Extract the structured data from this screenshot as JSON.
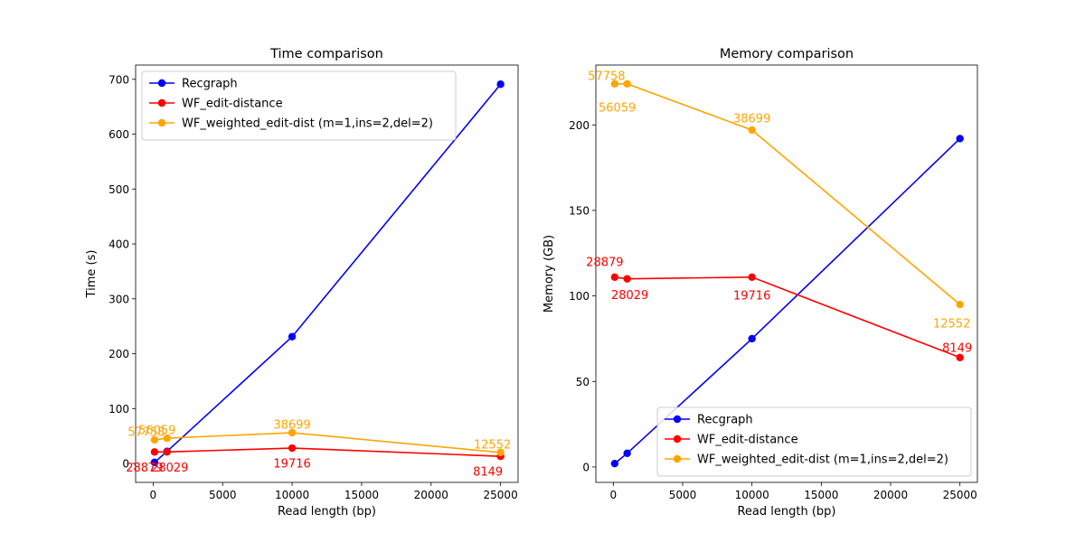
{
  "chart_data": [
    {
      "type": "line",
      "title": "Time comparison",
      "xlabel": "Read length (bp)",
      "ylabel": "Time (s)",
      "xlim": [
        -1260,
        26260
      ],
      "ylim": [
        -34.5,
        726
      ],
      "xticks": [
        0,
        5000,
        10000,
        15000,
        20000,
        25000
      ],
      "yticks": [
        0,
        100,
        200,
        300,
        400,
        500,
        600,
        700
      ],
      "grid": false,
      "legend_position": "upper-left",
      "x": [
        100,
        1000,
        10000,
        25000
      ],
      "series": [
        {
          "name": "Recgraph",
          "color": "#0000ff",
          "values": [
            2,
            22,
            231,
            691
          ],
          "labels": [
            "",
            "",
            "",
            ""
          ]
        },
        {
          "name": "WF_edit-distance",
          "color": "#ff0000",
          "values": [
            21,
            21,
            28,
            13
          ],
          "labels": [
            "28879",
            "28029",
            "19716",
            "8149"
          ]
        },
        {
          "name": "WF_weighted_edit-dist (m=1,ins=2,del=2)",
          "color": "#ffa500",
          "values": [
            43,
            46,
            56,
            20
          ],
          "labels": [
            "57758",
            "56059",
            "38699",
            "12552"
          ]
        }
      ]
    },
    {
      "type": "line",
      "title": "Memory comparison",
      "xlabel": "Read length (bp)",
      "ylabel": "Memory (GB)",
      "xlim": [
        -1260,
        26260
      ],
      "ylim": [
        -9,
        235
      ],
      "xticks": [
        0,
        5000,
        10000,
        15000,
        20000,
        25000
      ],
      "yticks": [
        0,
        50,
        100,
        150,
        200
      ],
      "grid": false,
      "legend_position": "lower-right",
      "x": [
        100,
        1000,
        10000,
        25000
      ],
      "series": [
        {
          "name": "Recgraph",
          "color": "#0000ff",
          "values": [
            2,
            8,
            75,
            192
          ],
          "labels": [
            "",
            "",
            "",
            ""
          ]
        },
        {
          "name": "WF_edit-distance",
          "color": "#ff0000",
          "values": [
            111,
            110,
            111,
            64
          ],
          "labels": [
            "28879",
            "28029",
            "19716",
            "8149"
          ]
        },
        {
          "name": "WF_weighted_edit-dist (m=1,ins=2,del=2)",
          "color": "#ffa500",
          "values": [
            224,
            224,
            197,
            95
          ],
          "labels": [
            "57758",
            "56059",
            "38699",
            "12552"
          ]
        }
      ]
    }
  ]
}
